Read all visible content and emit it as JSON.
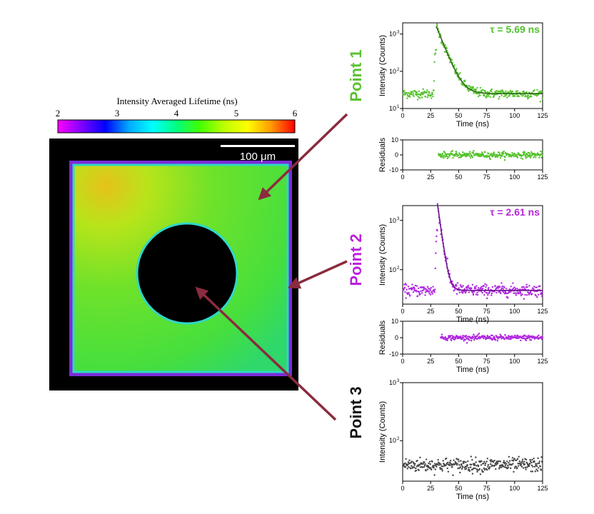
{
  "colorbar": {
    "title": "Intensity Averaged Lifetime (ns)",
    "ticks": [
      "2",
      "3",
      "4",
      "5",
      "6"
    ],
    "min": 2,
    "max": 6,
    "stops": [
      "#ff00ff",
      "#7f00ff",
      "#0000ff",
      "#00aaff",
      "#00ffff",
      "#00ff80",
      "#44ff00",
      "#bbff00",
      "#ffff00",
      "#ff9900",
      "#ff0000"
    ]
  },
  "image": {
    "scalebar_label": "100 μm",
    "square_fill": "#55e030",
    "hole_fill": "#000000"
  },
  "labels": {
    "point1": "Point 1",
    "point2": "Point 2",
    "point3": "Point 3",
    "point1_color": "#5cc233",
    "point2_color": "#bb22dd",
    "point3_color": "#111111",
    "arrow_color": "#8b2b3f"
  },
  "chart_data": [
    {
      "id": "decay1",
      "type": "scatter",
      "title": "τ = 5.69 ns",
      "title_color": "#4fc12a",
      "xlabel": "Time (ns)",
      "ylabel": "Intensity (Counts)",
      "yscale": "log",
      "xlim": [
        0,
        125
      ],
      "ylim": [
        10,
        2000
      ],
      "xticks": [
        "0",
        "25",
        "50",
        "75",
        "100",
        "125"
      ],
      "yticks": [
        {
          "value": 10,
          "label": "10",
          "exp": "1"
        },
        {
          "value": 100,
          "label": "10",
          "exp": "2"
        },
        {
          "value": 1000,
          "label": "10",
          "exp": "3"
        }
      ],
      "series": [
        {
          "name": "Point 1 decay",
          "color": "#55c22b",
          "background": 25,
          "onset": 30,
          "peak": 1600,
          "tau": 5.69,
          "fit_color": "#2f6d18"
        }
      ]
    },
    {
      "id": "resid1",
      "type": "scatter",
      "xlabel": "",
      "ylabel": "Residuals",
      "xlim": [
        0,
        125
      ],
      "ylim": [
        -10,
        10
      ],
      "xticks": [
        "0",
        "25",
        "50",
        "75",
        "100",
        "125"
      ],
      "yticks": [
        {
          "value": -10,
          "label": "-10"
        },
        {
          "value": 0,
          "label": "0"
        },
        {
          "value": 10,
          "label": "10"
        }
      ],
      "series": [
        {
          "name": "Point 1 residuals",
          "color": "#55c22b",
          "start": 32,
          "end": 125,
          "amplitude": 2
        }
      ]
    },
    {
      "id": "decay2",
      "type": "scatter",
      "title": "τ = 2.61 ns",
      "title_color": "#b526d9",
      "xlabel": "Time (ns)",
      "ylabel": "Intensity (Counts)",
      "yscale": "log",
      "xlim": [
        0,
        125
      ],
      "ylim": [
        20,
        2000
      ],
      "xticks": [
        "0",
        "25",
        "50",
        "75",
        "100",
        "125"
      ],
      "yticks": [
        {
          "value": 100,
          "label": "10",
          "exp": "2"
        },
        {
          "value": 1000,
          "label": "10",
          "exp": "3"
        }
      ],
      "series": [
        {
          "name": "Point 2 decay",
          "color": "#b026e0",
          "background": 38,
          "onset": 31,
          "peak": 2200,
          "tau": 2.61,
          "fit_color": "#6a1490"
        }
      ]
    },
    {
      "id": "resid2",
      "type": "scatter",
      "xlabel": "Time (ns)",
      "ylabel": "Residuals",
      "xlim": [
        0,
        125
      ],
      "ylim": [
        -10,
        10
      ],
      "xticks": [
        "0",
        "25",
        "50",
        "75",
        "100",
        "125"
      ],
      "yticks": [
        {
          "value": -10,
          "label": "-10"
        },
        {
          "value": 0,
          "label": "0"
        },
        {
          "value": 10,
          "label": "10"
        }
      ],
      "series": [
        {
          "name": "Point 2 residuals",
          "color": "#b026e0",
          "start": 34,
          "end": 125,
          "amplitude": 1.6
        }
      ]
    },
    {
      "id": "decay3",
      "type": "scatter",
      "xlabel": "Time (ns)",
      "ylabel": "Intensity (Counts)",
      "yscale": "log",
      "xlim": [
        0,
        125
      ],
      "ylim": [
        20,
        1000
      ],
      "xticks": [
        "0",
        "25",
        "50",
        "75",
        "100",
        "125"
      ],
      "yticks": [
        {
          "value": 100,
          "label": "10",
          "exp": "2"
        },
        {
          "value": 1000,
          "label": "10",
          "exp": "3"
        }
      ],
      "series": [
        {
          "name": "Point 3 background",
          "color": "#444444",
          "background": 38,
          "onset": null,
          "peak": null,
          "tau": null
        }
      ]
    }
  ]
}
